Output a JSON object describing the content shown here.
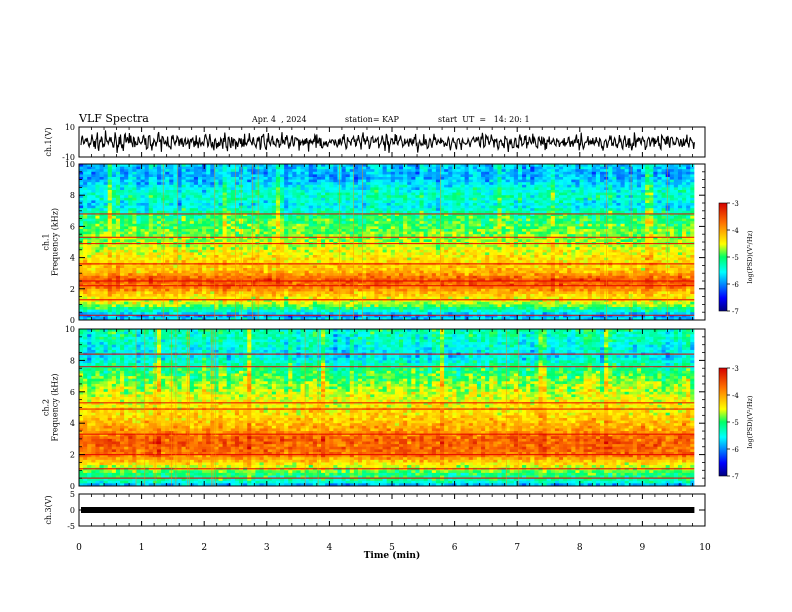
{
  "header": {
    "title": "VLF Spectra",
    "date": "Apr. 4  , 2024",
    "station": "station= KAP",
    "start": "start  UT  =   14: 20: 1"
  },
  "chart_data": [
    {
      "type": "line",
      "name": "ch1-waveform",
      "ylabel": "ch.1(V)",
      "ylim": [
        -10,
        10
      ],
      "ytick_labels": [
        "10",
        "-10"
      ],
      "xlim": [
        0,
        10
      ],
      "x_end": 9.83,
      "series_color": "#000000",
      "mean": 0,
      "amplitude": 4
    },
    {
      "type": "heatmap",
      "name": "ch1-spectrogram",
      "ylabel": "ch.1\nFrequency (kHz)",
      "ylim": [
        0,
        10
      ],
      "ytick_labels": [
        "0",
        "2",
        "4",
        "6",
        "8",
        "10"
      ],
      "xlim": [
        0,
        10
      ],
      "x_end": 9.83,
      "colorbar": {
        "label": "log(PSD)(V²/Hz)",
        "range": [
          -7,
          -3
        ],
        "tick_labels": [
          "-3",
          "-4",
          "-5",
          "-6",
          "-7"
        ]
      },
      "log_psd_profile": [
        {
          "f": 0.0,
          "v": -5.6
        },
        {
          "f": 0.3,
          "v": -6.0
        },
        {
          "f": 0.6,
          "v": -5.3
        },
        {
          "f": 1.0,
          "v": -4.7
        },
        {
          "f": 1.6,
          "v": -4.3
        },
        {
          "f": 2.2,
          "v": -3.7
        },
        {
          "f": 2.6,
          "v": -3.6
        },
        {
          "f": 3.2,
          "v": -4.2
        },
        {
          "f": 4.0,
          "v": -4.4
        },
        {
          "f": 5.0,
          "v": -4.7
        },
        {
          "f": 6.0,
          "v": -4.9
        },
        {
          "f": 6.8,
          "v": -5.1
        },
        {
          "f": 7.3,
          "v": -5.6
        },
        {
          "f": 8.0,
          "v": -5.3
        },
        {
          "f": 8.6,
          "v": -5.6
        },
        {
          "f": 9.2,
          "v": -5.9
        },
        {
          "f": 10.0,
          "v": -5.7
        }
      ],
      "bright_lines_khz": [
        0.3,
        1.3,
        2.2,
        2.5,
        3.6,
        4.9,
        5.3,
        6.8
      ]
    },
    {
      "type": "heatmap",
      "name": "ch2-spectrogram",
      "ylabel": "ch.2\nFrequency (kHz)",
      "ylim": [
        0,
        10
      ],
      "ytick_labels": [
        "0",
        "2",
        "4",
        "6",
        "8",
        "10"
      ],
      "xlim": [
        0,
        10
      ],
      "x_end": 9.83,
      "colorbar": {
        "label": "log(PSD)(V²/Hz)",
        "range": [
          -7,
          -3
        ],
        "tick_labels": [
          "-3",
          "-4",
          "-5",
          "-6",
          "-7"
        ]
      },
      "log_psd_profile": [
        {
          "f": 0.0,
          "v": -6.0
        },
        {
          "f": 0.3,
          "v": -5.3
        },
        {
          "f": 0.8,
          "v": -5.0
        },
        {
          "f": 1.5,
          "v": -4.3
        },
        {
          "f": 2.0,
          "v": -3.7
        },
        {
          "f": 3.0,
          "v": -3.6
        },
        {
          "f": 3.6,
          "v": -4.0
        },
        {
          "f": 4.5,
          "v": -4.3
        },
        {
          "f": 5.5,
          "v": -4.5
        },
        {
          "f": 6.5,
          "v": -4.7
        },
        {
          "f": 7.5,
          "v": -5.1
        },
        {
          "f": 8.3,
          "v": -5.6
        },
        {
          "f": 9.0,
          "v": -5.4
        },
        {
          "f": 10.0,
          "v": -5.2
        }
      ],
      "bright_lines_khz": [
        0.5,
        1.1,
        2.0,
        3.3,
        4.9,
        5.3,
        7.6,
        8.4
      ]
    },
    {
      "type": "line",
      "name": "ch3-waveform",
      "ylabel": "ch.3(V)",
      "ylim": [
        -5,
        5
      ],
      "ytick_labels": [
        "5",
        "0",
        "-5"
      ],
      "xlim": [
        0,
        10
      ],
      "x_end": 9.83,
      "series_color": "#000000",
      "mean": 0,
      "amplitude": 0.3
    }
  ],
  "xaxis": {
    "label": "Time  (min)",
    "tick_labels": [
      "0",
      "1",
      "2",
      "3",
      "4",
      "5",
      "6",
      "7",
      "8",
      "9",
      "10"
    ]
  }
}
